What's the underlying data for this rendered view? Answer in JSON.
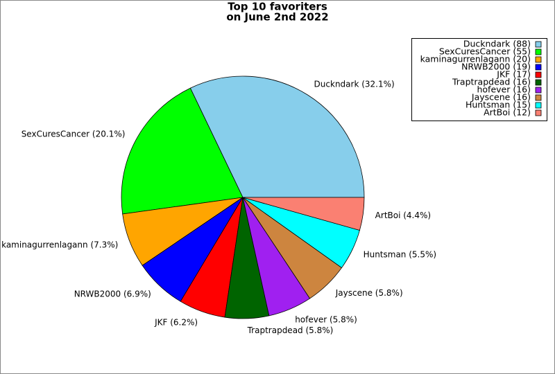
{
  "chart_data": {
    "type": "pie",
    "title": [
      "Top 10 favoriters",
      "on June 2nd 2022"
    ],
    "categories": [
      "Duckndark",
      "SexCuresCancer",
      "kaminagurrenlagann",
      "NRWB2000",
      "JKF",
      "Traptrapdead",
      "hofever",
      "Jayscene",
      "Huntsman",
      "ArtBoi"
    ],
    "values": [
      88,
      55,
      20,
      19,
      17,
      16,
      16,
      16,
      15,
      12
    ],
    "value_labels": [
      "Duckndark (32.1%)",
      "SexCuresCancer (20.1%)",
      "kaminagurrenlagann (7.3%)",
      "NRWB2000 (6.9%)",
      "JKF (6.2%)",
      "Traptrapdead (5.8%)",
      "hofever (5.8%)",
      "Jayscene (5.8%)",
      "Huntsman (5.5%)",
      "ArtBoi (4.4%)"
    ],
    "legend_labels": [
      "Duckndark (88)",
      "SexCuresCancer (55)",
      "kaminagurrenlagann (20)",
      "NRWB2000 (19)",
      "JKF (17)",
      "Traptrapdead (16)",
      "hofever (16)",
      "Jayscene (16)",
      "Huntsman (15)",
      "ArtBoi (12)"
    ],
    "colors": [
      "#87ceeb",
      "#00ff00",
      "#ffa500",
      "#0000ff",
      "#ff0000",
      "#006400",
      "#a020f0",
      "#cd853f",
      "#00ffff",
      "#fa8072"
    ],
    "legend": "upper right"
  }
}
